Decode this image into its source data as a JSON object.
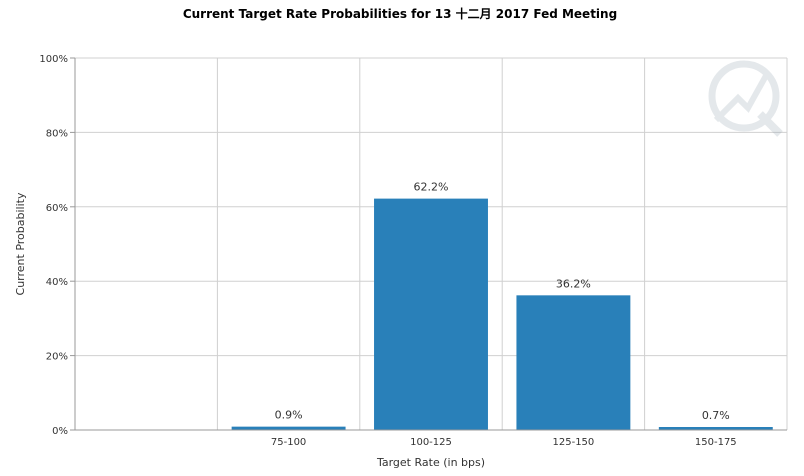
{
  "chart_data": {
    "type": "bar",
    "title": "Current Target Rate Probabilities for 13 十二月 2017  Fed Meeting",
    "xlabel": "Target Rate (in bps)",
    "ylabel": "Current Probability",
    "categories": [
      "75-100",
      "100-125",
      "125-150",
      "150-175"
    ],
    "series": [
      {
        "values": [
          0.9,
          62.2,
          36.2,
          0.7
        ],
        "data_labels": [
          "0.9%",
          "62.2%",
          "36.2%",
          "0.7%"
        ]
      }
    ],
    "ylim": [
      0,
      100
    ],
    "yticks": [
      0,
      20,
      40,
      60,
      80,
      100
    ],
    "ytick_labels": [
      "0%",
      "20%",
      "40%",
      "60%",
      "80%",
      "100%"
    ],
    "grid": true,
    "legend": "none",
    "colors": {
      "bar": "#2980b9",
      "grid": "#d0d0d0",
      "axis": "#999999"
    }
  }
}
